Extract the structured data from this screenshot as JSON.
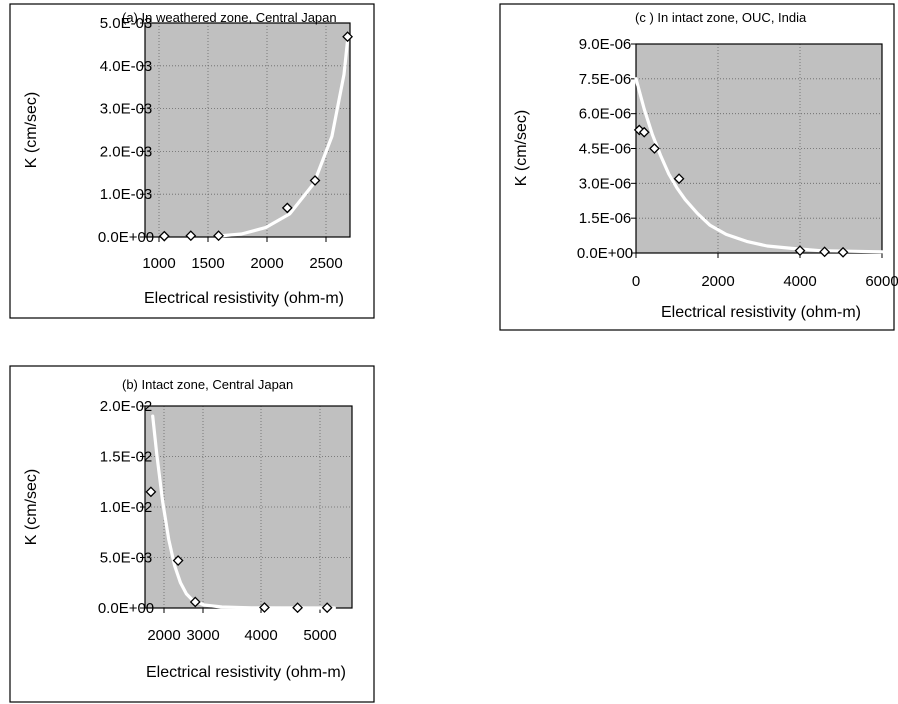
{
  "chart_data": [
    {
      "type": "scatter",
      "title": "(a) In weathered zone, Central Japan",
      "xlabel": "Electrical resistivity (ohm-m)",
      "ylabel": "K (cm/sec)",
      "xlim": [
        900,
        2600
      ],
      "ylim": [
        0,
        0.005
      ],
      "x_ticks": [
        "1000",
        "1500",
        "2000",
        "2500"
      ],
      "y_ticks": [
        "0.0E+00",
        "1.0E-03",
        "2.0E-03",
        "3.0E-03",
        "4.0E-03",
        "5.0E-03"
      ],
      "grid": true,
      "series": [
        {
          "kind": "points",
          "marker": "diamond",
          "x": [
            1060,
            1280,
            1510,
            2080,
            2310,
            2580
          ],
          "y": [
            2e-05,
            3e-05,
            3e-05,
            0.00068,
            0.00132,
            0.00468
          ]
        },
        {
          "kind": "trendline",
          "color": "#ffffff",
          "x": [
            1500,
            1700,
            1900,
            2100,
            2300,
            2450,
            2550,
            2580
          ],
          "y": [
            2e-05,
            7e-05,
            0.00022,
            0.00054,
            0.00125,
            0.00235,
            0.0038,
            0.0046
          ]
        }
      ]
    },
    {
      "type": "scatter",
      "title": "(b) Intact  zone, Central Japan",
      "xlabel": "Electrical  resistivity (ohm-m)",
      "ylabel": "K (cm/sec)",
      "xlim": [
        2000,
        5500
      ],
      "ylim": [
        0,
        0.02
      ],
      "x_ticks": [
        "2000",
        "3000",
        "4000",
        "5000"
      ],
      "y_ticks": [
        "0.0E+00",
        "5.0E-03",
        "1.0E-02",
        "1.5E-02",
        "2.0E-02"
      ],
      "grid": true,
      "series": [
        {
          "kind": "points",
          "marker": "diamond",
          "x": [
            2100,
            2560,
            2850,
            4020,
            4580,
            5080
          ],
          "y": [
            0.0115,
            0.0047,
            0.0006,
            5e-05,
            3e-05,
            3e-05
          ]
        },
        {
          "kind": "trendline",
          "color": "#ffffff",
          "x": [
            2130,
            2200,
            2300,
            2400,
            2500,
            2600,
            2700,
            2800,
            3000,
            3300,
            3800,
            5200
          ],
          "y": [
            0.019,
            0.0152,
            0.0105,
            0.0068,
            0.0042,
            0.0025,
            0.0014,
            0.0008,
            0.0003,
            0.0001,
            2e-05,
            0.0
          ]
        }
      ]
    },
    {
      "type": "scatter",
      "title": "(c ) In intact zone, OUC, India",
      "xlabel": "Electrical resistivity (ohm-m)",
      "ylabel": "K (cm/sec)",
      "xlim": [
        0,
        6000
      ],
      "ylim": [
        0,
        9e-06
      ],
      "x_ticks": [
        "0",
        "2000",
        "4000",
        "6000"
      ],
      "y_ticks": [
        "0.0E+00",
        "1.5E-06",
        "3.0E-06",
        "4.5E-06",
        "6.0E-06",
        "7.5E-06",
        "9.0E-06"
      ],
      "grid": true,
      "series": [
        {
          "kind": "points",
          "marker": "diamond",
          "x": [
            80,
            200,
            450,
            1050,
            4000,
            4600,
            5050
          ],
          "y": [
            5.3e-06,
            5.2e-06,
            4.5e-06,
            3.2e-06,
            1e-07,
            5e-08,
            3e-08
          ]
        },
        {
          "kind": "trendline",
          "color": "#ffffff",
          "x": [
            0,
            200,
            400,
            600,
            800,
            1000,
            1200,
            1500,
            1800,
            2200,
            2700,
            3200,
            3800,
            4500,
            6000
          ],
          "y": [
            7.5e-06,
            6.2e-06,
            5.1e-06,
            4.2e-06,
            3.4e-06,
            2.8e-06,
            2.3e-06,
            1.7e-06,
            1.2e-06,
            8e-07,
            5e-07,
            3e-07,
            2e-07,
            1e-07,
            5e-08
          ]
        }
      ]
    }
  ]
}
